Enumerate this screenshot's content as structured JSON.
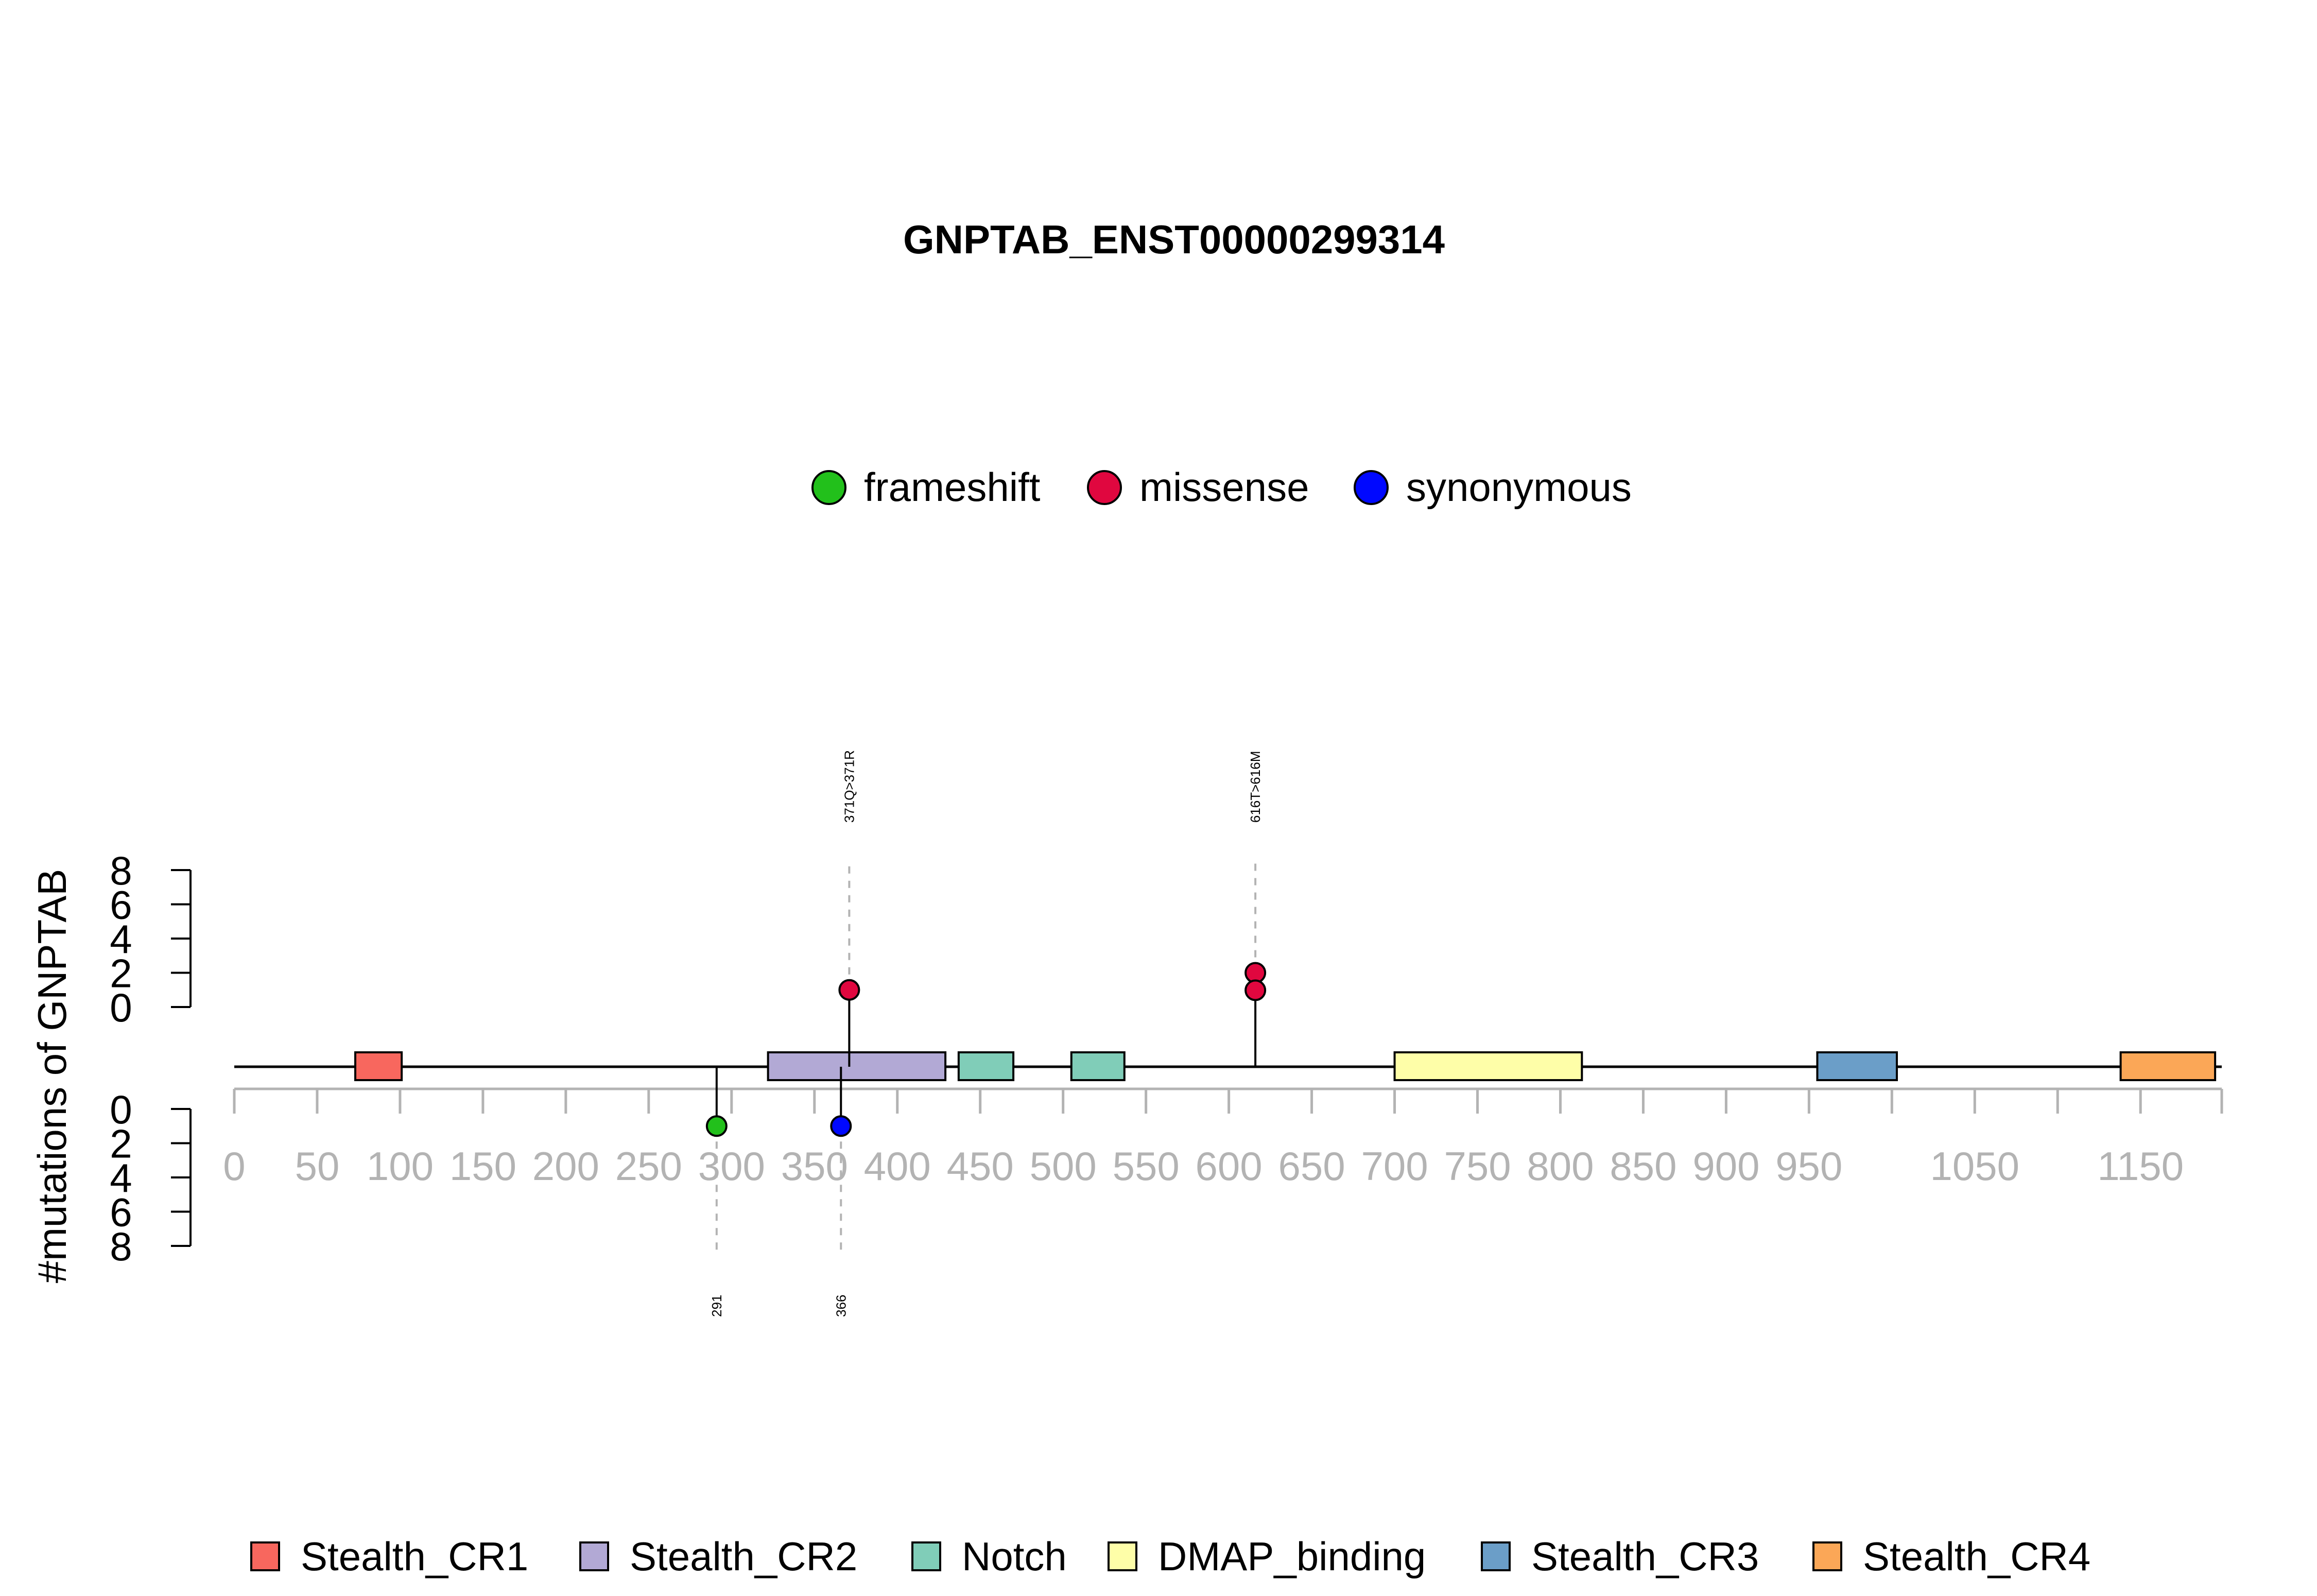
{
  "chart_data": {
    "type": "lollipop",
    "title": "GNPTAB_ENST00000299314",
    "ylabel": "#mutations of GNPTAB",
    "protein_length": 1199,
    "xlim": [
      0,
      1199
    ],
    "x_ticks": [
      0,
      50,
      100,
      150,
      200,
      250,
      300,
      350,
      400,
      450,
      500,
      550,
      600,
      650,
      700,
      750,
      800,
      850,
      900,
      950,
      1000,
      1050,
      1100,
      1150,
      1199
    ],
    "x_tick_labels": [
      "0",
      "50",
      "100",
      "150",
      "200",
      "250",
      "300",
      "350",
      "400",
      "450",
      "500",
      "550",
      "600",
      "650",
      "700",
      "750",
      "800",
      "850",
      "900",
      "950",
      "",
      "1050",
      "",
      "1150",
      ""
    ],
    "y_upper": {
      "ticks": [
        "8",
        "6",
        "4",
        "2",
        "0"
      ],
      "range": [
        0,
        8
      ]
    },
    "y_lower": {
      "ticks": [
        "0",
        "2",
        "4",
        "6",
        "8"
      ],
      "range": [
        0,
        8
      ]
    },
    "mutation_types": [
      {
        "name": "frameshift",
        "color": "#22c01b"
      },
      {
        "name": "missense",
        "color": "#e0073f"
      },
      {
        "name": "synonymous",
        "color": "#0008ff"
      }
    ],
    "upper_mutations": [
      {
        "position": 371,
        "count": 1,
        "type": "missense",
        "label": "371Q>371R"
      },
      {
        "position": 616,
        "count": 2,
        "type": "missense",
        "label": "616T>616M"
      }
    ],
    "lower_mutations": [
      {
        "position": 291,
        "count": 1,
        "type": "frameshift",
        "label": "291"
      },
      {
        "position": 366,
        "count": 1,
        "type": "synonymous",
        "label": "366"
      }
    ],
    "domains": [
      {
        "name": "Stealth_CR1",
        "start": 73,
        "end": 101,
        "color": "#f8675e"
      },
      {
        "name": "Stealth_CR2",
        "start": 322,
        "end": 429,
        "color": "#b2a9d5"
      },
      {
        "name": "Notch",
        "start": 437,
        "end": 470,
        "color": "#80cdb8"
      },
      {
        "name": "Notch",
        "start": 505,
        "end": 537,
        "color": "#80cdb8"
      },
      {
        "name": "DMAP_binding",
        "start": 700,
        "end": 813,
        "color": "#fefea8"
      },
      {
        "name": "Stealth_CR3",
        "start": 955,
        "end": 1003,
        "color": "#6b9ec8"
      },
      {
        "name": "Stealth_CR4",
        "start": 1138,
        "end": 1195,
        "color": "#fba757"
      }
    ],
    "domain_legend": [
      {
        "name": "Stealth_CR1",
        "color": "#f8675e"
      },
      {
        "name": "Stealth_CR2",
        "color": "#b2a9d5"
      },
      {
        "name": "Notch",
        "color": "#80cdb8"
      },
      {
        "name": "DMAP_binding",
        "color": "#fefea8"
      },
      {
        "name": "Stealth_CR3",
        "color": "#6b9ec8"
      },
      {
        "name": "Stealth_CR4",
        "color": "#fba757"
      }
    ]
  }
}
